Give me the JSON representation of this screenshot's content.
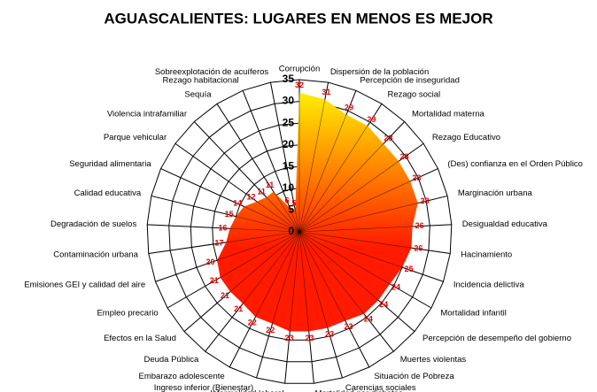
{
  "chart_data": {
    "type": "radar",
    "title": "AGUASCALIENTES: LUGARES EN MENOS ES MEJOR",
    "categories": [
      "Corrupción",
      "Dispersión de la población",
      "Percepción de inseguridad",
      "Rezago social",
      "Mortalidad materna",
      "Rezago Educativo",
      "(Des) confianza en el Orden Público",
      "Marginación urbana",
      "Desigualdad educativa",
      "Hacinamiento",
      "Incidencia delictiva",
      "Mortalidad infantil",
      "Percepción de desempeño del gobierno",
      "Muertes violentas",
      "Situación de Pobreza",
      "Carencias sociales",
      "Mortalidad por diabetes",
      "Informalidad laboral",
      "Ingreso inferior (Bienestar)",
      "Embarazo adolescente",
      "Deuda Pública",
      "Efectos en la Salud",
      "Empleo precario",
      "Emisiones GEI y calidad del aire",
      "Contaminación urbana",
      "Degradación de suelos",
      "Calidad educativa",
      "Seguridad alimentaria",
      "Parque vehicular",
      "Violencia intrafamiliar",
      "Sequía",
      "Rezago habitacional",
      "Sobreexplotación de acuíferos"
    ],
    "values": [
      32,
      31,
      29,
      29,
      28,
      28,
      28,
      28,
      26,
      26,
      25,
      24,
      24,
      24,
      23,
      23,
      23,
      23,
      22,
      22,
      21,
      21,
      21,
      20,
      17,
      16,
      15,
      14,
      12,
      11,
      11,
      6,
      5
    ],
    "gradient": [
      "#ffee00",
      "#ff1a00"
    ],
    "label_color": "#e00000",
    "ylim": [
      0,
      35
    ],
    "yticks": [
      0,
      5,
      10,
      15,
      20,
      25,
      30,
      35
    ],
    "grid": true
  }
}
